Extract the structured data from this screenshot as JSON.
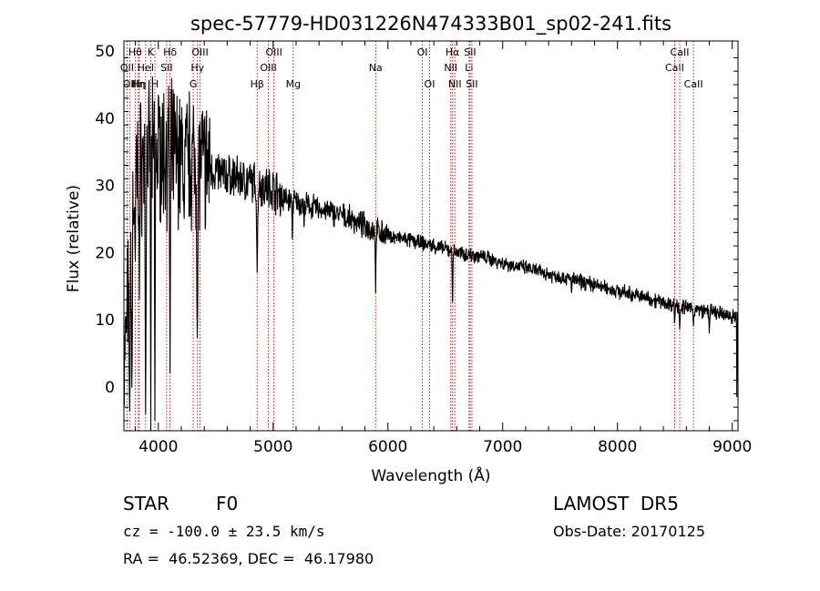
{
  "chart_data": {
    "type": "line",
    "title": "spec-57779-HD031226N474333B01_sp02-241.fits",
    "xlabel": "Wavelength (Å)",
    "ylabel": "Flux (relative)",
    "xlim": [
      3700,
      9050
    ],
    "ylim": [
      -6.5,
      51.5
    ],
    "x_ticks": [
      4000,
      5000,
      6000,
      7000,
      8000,
      9000
    ],
    "x_tick_labels": [
      "4000",
      "5000",
      "6000",
      "7000",
      "8000",
      "9000"
    ],
    "y_ticks": [
      0,
      10,
      20,
      30,
      40,
      50
    ],
    "y_tick_labels": [
      "0",
      "10",
      "20",
      "30",
      "40",
      "50"
    ],
    "grid": false,
    "series": [
      {
        "color": "#000000",
        "continuum": [
          [
            3700,
            2
          ],
          [
            3720,
            8
          ],
          [
            3760,
            22
          ],
          [
            3800,
            31
          ],
          [
            3850,
            33
          ],
          [
            3900,
            34
          ],
          [
            4000,
            35
          ],
          [
            4100,
            35
          ],
          [
            4200,
            34
          ],
          [
            4300,
            34
          ],
          [
            4400,
            33
          ],
          [
            4500,
            32
          ],
          [
            4600,
            31.5
          ],
          [
            4700,
            31
          ],
          [
            4800,
            30.5
          ],
          [
            4900,
            30
          ],
          [
            5000,
            29.5
          ],
          [
            5100,
            28
          ],
          [
            5200,
            27.5
          ],
          [
            5400,
            26.5
          ],
          [
            5600,
            25.5
          ],
          [
            5800,
            24
          ],
          [
            6000,
            22.5
          ],
          [
            6200,
            21.8
          ],
          [
            6400,
            21
          ],
          [
            6600,
            20
          ],
          [
            6800,
            19.5
          ],
          [
            7000,
            18.5
          ],
          [
            7200,
            17.7
          ],
          [
            7400,
            16.8
          ],
          [
            7600,
            16
          ],
          [
            7800,
            15.2
          ],
          [
            8000,
            14.3
          ],
          [
            8200,
            13.5
          ],
          [
            8400,
            12.6
          ],
          [
            8600,
            11.8
          ],
          [
            8800,
            11.2
          ],
          [
            9000,
            10.5
          ],
          [
            9050,
            10.5
          ]
        ],
        "absorption": [
          [
            3750,
            -5,
            12
          ],
          [
            3770,
            -3,
            8
          ],
          [
            3798,
            15,
            6
          ],
          [
            3835,
            13,
            6
          ],
          [
            3889,
            -4,
            8
          ],
          [
            3934,
            -6.5,
            5
          ],
          [
            3970,
            -5,
            6
          ],
          [
            4102,
            2,
            8
          ],
          [
            4226,
            22,
            5
          ],
          [
            4340,
            5,
            10
          ],
          [
            4861,
            17,
            10
          ],
          [
            5167,
            22,
            6
          ],
          [
            5270,
            23,
            6
          ],
          [
            5893,
            14,
            6
          ],
          [
            6563,
            11,
            6
          ],
          [
            7600,
            14,
            5
          ],
          [
            8498,
            9,
            6
          ],
          [
            8542,
            8.5,
            6
          ],
          [
            8662,
            9,
            6
          ],
          [
            8800,
            8,
            5
          ],
          [
            9040,
            -1.5,
            4
          ]
        ]
      }
    ],
    "spectral_lines": [
      {
        "wavelength": 3727,
        "label": "OII",
        "row": 2
      },
      {
        "wavelength": 3750,
        "label": "OII",
        "row": 3
      },
      {
        "wavelength": 3798,
        "label": "Hθ",
        "row": 1
      },
      {
        "wavelength": 3825,
        "label": "Hη",
        "row": 3
      },
      {
        "wavelength": 3835,
        "label": "Hη",
        "row": 3
      },
      {
        "wavelength": 3889,
        "label": "HeI",
        "row": 2
      },
      {
        "wavelength": 3934,
        "label": "K",
        "row": 1
      },
      {
        "wavelength": 3970,
        "label": "H",
        "row": 3
      },
      {
        "wavelength": 4072,
        "label": "SII",
        "row": 2
      },
      {
        "wavelength": 4102,
        "label": "Hδ",
        "row": 1
      },
      {
        "wavelength": 4304,
        "label": "G",
        "row": 3
      },
      {
        "wavelength": 4341,
        "label": "Hγ",
        "row": 2
      },
      {
        "wavelength": 4363,
        "label": "OIII",
        "row": 1
      },
      {
        "wavelength": 4861,
        "label": "Hβ",
        "row": 3
      },
      {
        "wavelength": 4959,
        "label": "OIII",
        "row": 2
      },
      {
        "wavelength": 5007,
        "label": "OIII",
        "row": 1
      },
      {
        "wavelength": 5175,
        "label": "Mg",
        "row": 3
      },
      {
        "wavelength": 5893,
        "label": "Na",
        "row": 2
      },
      {
        "wavelength": 6300,
        "label": "OI",
        "row": 1
      },
      {
        "wavelength": 6363,
        "label": "OI",
        "row": 3
      },
      {
        "wavelength": 6548,
        "label": "NII",
        "row": 2
      },
      {
        "wavelength": 6563,
        "label": "Hα",
        "row": 1
      },
      {
        "wavelength": 6583,
        "label": "NII",
        "row": 3
      },
      {
        "wavelength": 6707,
        "label": "Li",
        "row": 2
      },
      {
        "wavelength": 6716,
        "label": "SII",
        "row": 1
      },
      {
        "wavelength": 6731,
        "label": "SII",
        "row": 3
      },
      {
        "wavelength": 8498,
        "label": "CaII",
        "row": 2
      },
      {
        "wavelength": 8542,
        "label": "CaII",
        "row": 1
      },
      {
        "wavelength": 8662,
        "label": "CaII",
        "row": 3
      }
    ]
  },
  "footer": {
    "object_class": "STAR",
    "subclass": "F0",
    "survey": "LAMOST  DR5",
    "redshift": "cz = -100.0 ± 23.5 km/s",
    "obs_date": "Obs-Date: 20170125",
    "coords": "RA =  46.52369, DEC =  46.17980"
  }
}
